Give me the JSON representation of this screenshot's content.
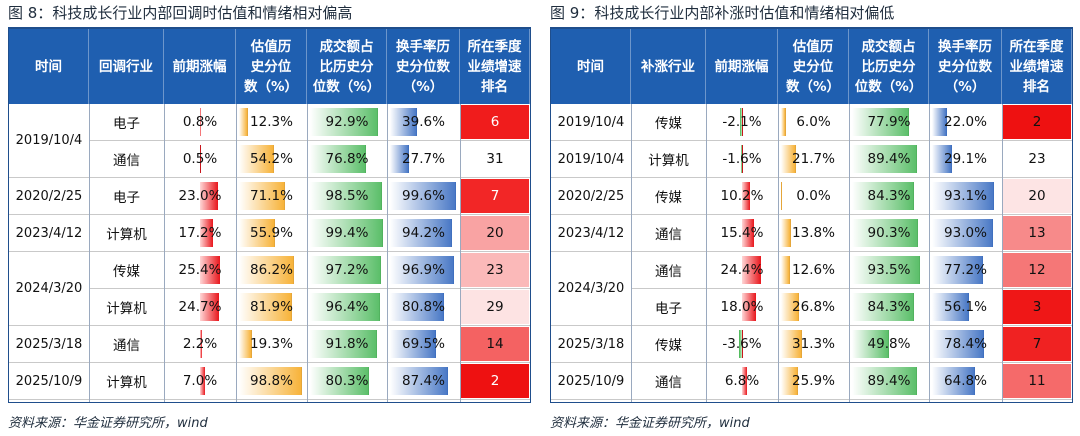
{
  "colors": {
    "header": "#1f5fb0",
    "title": "#1f2d3d"
  },
  "left": {
    "fig_label": "图 8：",
    "title": "科技成长行业内部回调时估值和情绪相对偏高",
    "headers": [
      "时间",
      "回调行业",
      "前期涨幅",
      "估值历\n史分位\n数（%）",
      "成交额占\n比历史分\n位数（%）",
      "换手率历\n史分位数\n（%）",
      "所在季度\n业绩增速\n排名"
    ],
    "groups": [
      {
        "date": "2019/10/4",
        "rows": 2
      },
      {
        "date": "2020/2/25",
        "rows": 1
      },
      {
        "date": "2023/4/12",
        "rows": 1
      },
      {
        "date": "2024/3/20",
        "rows": 2
      },
      {
        "date": "2025/3/18",
        "rows": 1
      },
      {
        "date": "2025/10/9",
        "rows": 1
      }
    ],
    "rows": [
      {
        "industry": "电子",
        "gain": "0.8%",
        "gain_v": 0.8,
        "val": "12.3%",
        "val_v": 12.3,
        "vol": "92.9%",
        "vol_v": 92.9,
        "turn": "39.6%",
        "turn_v": 39.6,
        "rank": "6",
        "rank_bg": "#f01c1c",
        "rank_fg": "#ffffff"
      },
      {
        "industry": "通信",
        "gain": "0.5%",
        "gain_v": 0.5,
        "val": "54.2%",
        "val_v": 54.2,
        "vol": "76.8%",
        "vol_v": 76.8,
        "turn": "27.7%",
        "turn_v": 27.7,
        "rank": "31",
        "rank_bg": "#ffffff",
        "rank_fg": "#111111"
      },
      {
        "industry": "电子",
        "gain": "23.0%",
        "gain_v": 23.0,
        "val": "71.1%",
        "val_v": 71.1,
        "vol": "98.5%",
        "vol_v": 98.5,
        "turn": "99.6%",
        "turn_v": 99.6,
        "rank": "7",
        "rank_bg": "#f22626",
        "rank_fg": "#ffffff"
      },
      {
        "industry": "计算机",
        "gain": "17.2%",
        "gain_v": 17.2,
        "val": "55.9%",
        "val_v": 55.9,
        "vol": "99.4%",
        "vol_v": 99.4,
        "turn": "94.2%",
        "turn_v": 94.2,
        "rank": "20",
        "rank_bg": "#f9a3a3",
        "rank_fg": "#111111"
      },
      {
        "industry": "传媒",
        "gain": "25.4%",
        "gain_v": 25.4,
        "val": "86.2%",
        "val_v": 86.2,
        "vol": "97.2%",
        "vol_v": 97.2,
        "turn": "96.9%",
        "turn_v": 96.9,
        "rank": "23",
        "rank_bg": "#fbb9b9",
        "rank_fg": "#111111"
      },
      {
        "industry": "计算机",
        "gain": "24.7%",
        "gain_v": 24.7,
        "val": "81.9%",
        "val_v": 81.9,
        "vol": "96.4%",
        "vol_v": 96.4,
        "turn": "80.8%",
        "turn_v": 80.8,
        "rank": "29",
        "rank_bg": "#fde3e3",
        "rank_fg": "#111111"
      },
      {
        "industry": "通信",
        "gain": "2.2%",
        "gain_v": 2.2,
        "val": "19.3%",
        "val_v": 19.3,
        "vol": "91.8%",
        "vol_v": 91.8,
        "turn": "69.5%",
        "turn_v": 69.5,
        "rank": "14",
        "rank_bg": "#f46262",
        "rank_fg": "#111111"
      },
      {
        "industry": "计算机",
        "gain": "7.0%",
        "gain_v": 7.0,
        "val": "98.8%",
        "val_v": 98.8,
        "vol": "80.3%",
        "vol_v": 80.3,
        "turn": "87.4%",
        "turn_v": 87.4,
        "rank": "2",
        "rank_bg": "#ee1111",
        "rank_fg": "#ffffff"
      }
    ],
    "source": "资料来源：华金证券研究所，wind"
  },
  "right": {
    "fig_label": "图 9：",
    "title": "科技成长行业内部补涨时估值和情绪相对偏低",
    "headers": [
      "时间",
      "补涨行业",
      "前期涨幅",
      "估值历\n史分位\n数（%）",
      "成交额占\n比历史分\n位数（%）",
      "换手率历\n史分位数\n（%）",
      "所在季度\n业绩增速\n排名"
    ],
    "groups": [
      {
        "date": "2019/10/4",
        "rows": 1
      },
      {
        "date": "2019/10/4",
        "rows": 1
      },
      {
        "date": "2020/2/25",
        "rows": 1
      },
      {
        "date": "2023/4/12",
        "rows": 1
      },
      {
        "date": "2024/3/20",
        "rows": 2
      },
      {
        "date": "2025/3/18",
        "rows": 1
      },
      {
        "date": "2025/10/9",
        "rows": 1
      }
    ],
    "rows": [
      {
        "industry": "传媒",
        "gain": "-2.1%",
        "gain_v": -2.1,
        "val": "6.0%",
        "val_v": 6.0,
        "vol": "77.9%",
        "vol_v": 77.9,
        "turn": "22.0%",
        "turn_v": 22.0,
        "rank": "2",
        "rank_bg": "#ee1111",
        "rank_fg": "#111111"
      },
      {
        "industry": "计算机",
        "gain": "-1.6%",
        "gain_v": -1.6,
        "val": "21.7%",
        "val_v": 21.7,
        "vol": "89.4%",
        "vol_v": 89.4,
        "turn": "29.1%",
        "turn_v": 29.1,
        "rank": "23",
        "rank_bg": "#ffffff",
        "rank_fg": "#111111"
      },
      {
        "industry": "传媒",
        "gain": "10.2%",
        "gain_v": 10.2,
        "val": "0.0%",
        "val_v": 0.0,
        "vol": "84.3%",
        "vol_v": 84.3,
        "turn": "93.1%",
        "turn_v": 93.1,
        "rank": "20",
        "rank_bg": "#fde4e4",
        "rank_fg": "#111111"
      },
      {
        "industry": "通信",
        "gain": "15.4%",
        "gain_v": 15.4,
        "val": "13.8%",
        "val_v": 13.8,
        "vol": "90.3%",
        "vol_v": 90.3,
        "turn": "93.0%",
        "turn_v": 93.0,
        "rank": "13",
        "rank_bg": "#f78a8a",
        "rank_fg": "#111111"
      },
      {
        "industry": "通信",
        "gain": "24.4%",
        "gain_v": 24.4,
        "val": "12.6%",
        "val_v": 12.6,
        "vol": "93.5%",
        "vol_v": 93.5,
        "turn": "77.2%",
        "turn_v": 77.2,
        "rank": "12",
        "rank_bg": "#f57777",
        "rank_fg": "#111111"
      },
      {
        "industry": "电子",
        "gain": "18.0%",
        "gain_v": 18.0,
        "val": "26.8%",
        "val_v": 26.8,
        "vol": "84.3%",
        "vol_v": 84.3,
        "turn": "56.1%",
        "turn_v": 56.1,
        "rank": "3",
        "rank_bg": "#ef1717",
        "rank_fg": "#111111"
      },
      {
        "industry": "传媒",
        "gain": "-3.6%",
        "gain_v": -3.6,
        "val": "31.3%",
        "val_v": 31.3,
        "vol": "49.8%",
        "vol_v": 49.8,
        "turn": "78.4%",
        "turn_v": 78.4,
        "rank": "7",
        "rank_bg": "#f02222",
        "rank_fg": "#111111"
      },
      {
        "industry": "通信",
        "gain": "6.8%",
        "gain_v": 6.8,
        "val": "25.9%",
        "val_v": 25.9,
        "vol": "89.4%",
        "vol_v": 89.4,
        "turn": "64.8%",
        "turn_v": 64.8,
        "rank": "11",
        "rank_bg": "#f56a6a",
        "rank_fg": "#111111"
      }
    ],
    "source": "资料来源：华金证券研究所，wind"
  }
}
